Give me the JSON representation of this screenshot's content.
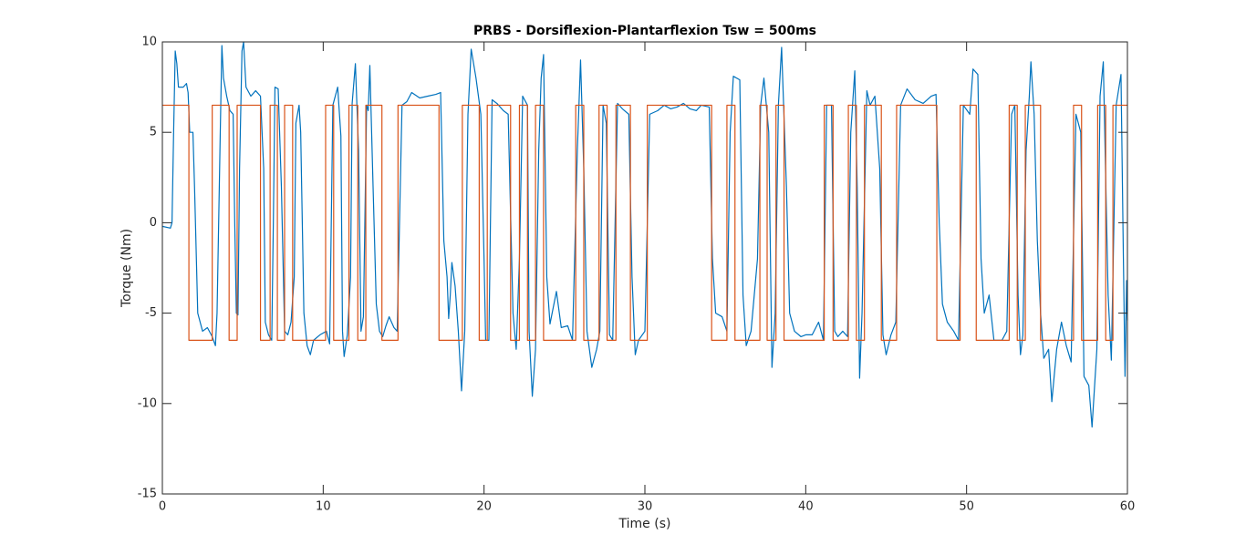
{
  "chart_data": {
    "type": "line",
    "title": "PRBS - Dorsiflexion-Plantarflexion Tsw = 500ms",
    "x_label": "Time (s)",
    "y_label": "Torque (Nm)",
    "xlim": [
      0,
      60
    ],
    "xticks": [
      0,
      10,
      20,
      30,
      40,
      50,
      60
    ],
    "ylim": [
      -15,
      10
    ],
    "yticks": [
      -15,
      -10,
      -5,
      0,
      5,
      10
    ],
    "grid": false,
    "series": [
      {
        "color": "#0072bd",
        "x": [
          0,
          0.5,
          0.6,
          0.7,
          0.8,
          0.9,
          1.0,
          1.3,
          1.5,
          1.6,
          1.7,
          1.9,
          2.0,
          2.2,
          2.5,
          2.8,
          3.1,
          3.3,
          3.4,
          3.6,
          3.7,
          3.8,
          4.0,
          4.2,
          4.4,
          4.5,
          4.6,
          4.7,
          4.8,
          4.95,
          5.05,
          5.2,
          5.5,
          5.8,
          6.1,
          6.3,
          6.4,
          6.6,
          6.8,
          6.9,
          7.0,
          7.2,
          7.4,
          7.6,
          7.8,
          8.0,
          8.2,
          8.3,
          8.5,
          8.6,
          8.8,
          9.0,
          9.2,
          9.4,
          9.8,
          10.2,
          10.4,
          10.6,
          10.9,
          11.1,
          11.2,
          11.3,
          11.5,
          11.7,
          11.8,
          12.0,
          12.2,
          12.35,
          12.5,
          12.7,
          12.8,
          12.9,
          13.1,
          13.3,
          13.5,
          13.7,
          13.9,
          14.1,
          14.4,
          14.6,
          14.9,
          15.2,
          15.5,
          16.0,
          16.5,
          17.0,
          17.3,
          17.5,
          17.7,
          17.8,
          17.9,
          18.0,
          18.2,
          18.4,
          18.6,
          18.8,
          19.0,
          19.2,
          19.5,
          19.8,
          20.0,
          20.1,
          20.3,
          20.5,
          20.8,
          21.2,
          21.5,
          21.8,
          22.0,
          22.2,
          22.4,
          22.7,
          22.8,
          23.0,
          23.2,
          23.4,
          23.55,
          23.7,
          23.9,
          24.1,
          24.5,
          24.8,
          25.2,
          25.5,
          25.8,
          26.0,
          26.2,
          26.4,
          26.7,
          27.0,
          27.2,
          27.4,
          27.6,
          27.8,
          28.0,
          28.3,
          28.6,
          29.0,
          29.2,
          29.4,
          29.6,
          30.0,
          30.3,
          30.8,
          31.2,
          31.6,
          32.0,
          32.4,
          32.8,
          33.2,
          33.5,
          34.0,
          34.2,
          34.4,
          34.8,
          35.1,
          35.3,
          35.5,
          35.9,
          36.1,
          36.3,
          36.6,
          37.0,
          37.2,
          37.4,
          37.7,
          37.9,
          38.1,
          38.3,
          38.5,
          38.8,
          39.0,
          39.3,
          39.7,
          40.0,
          40.4,
          40.8,
          41.1,
          41.3,
          41.6,
          41.8,
          42.0,
          42.3,
          42.6,
          42.8,
          43.05,
          43.2,
          43.35,
          43.5,
          43.8,
          44.0,
          44.3,
          44.6,
          44.8,
          45.0,
          45.3,
          45.6,
          45.9,
          46.3,
          46.8,
          47.3,
          47.8,
          48.1,
          48.3,
          48.5,
          48.8,
          49.2,
          49.5,
          49.8,
          50.2,
          50.4,
          50.7,
          50.9,
          51.1,
          51.4,
          51.7,
          52.2,
          52.5,
          52.8,
          53.0,
          53.2,
          53.35,
          53.5,
          53.7,
          53.9,
          54.0,
          54.2,
          54.4,
          54.6,
          54.8,
          55.1,
          55.3,
          55.6,
          55.9,
          56.2,
          56.5,
          56.8,
          57.1,
          57.3,
          57.6,
          57.8,
          58.1,
          58.3,
          58.5,
          58.8,
          59.0,
          59.3,
          59.6,
          59.75,
          59.85,
          59.95,
          60
        ],
        "values": [
          -0.2,
          -0.3,
          0,
          5,
          9.5,
          8.8,
          7.5,
          7.5,
          7.7,
          7.2,
          5.0,
          5.0,
          2,
          -5,
          -6,
          -5.8,
          -6.3,
          -6.8,
          -5,
          5,
          9.8,
          8,
          7,
          6.2,
          6,
          0,
          -5,
          -5.1,
          3,
          9.5,
          10,
          7.5,
          7,
          7.3,
          7.0,
          3,
          -5.5,
          -6.2,
          -6.5,
          0,
          7.5,
          7.4,
          2,
          -6,
          -6.2,
          -5.5,
          -3,
          5.5,
          6.5,
          5,
          -5,
          -6.8,
          -7.3,
          -6.5,
          -6.2,
          -6.0,
          -6.7,
          6.5,
          7.5,
          4.8,
          -6,
          -7.4,
          -6.2,
          -3,
          6.6,
          8.8,
          4,
          -6,
          -5.2,
          6.5,
          6.2,
          8.7,
          2,
          -4.5,
          -6,
          -6.3,
          -5.7,
          -5.2,
          -5.8,
          -6.0,
          6.5,
          6.7,
          7.2,
          6.9,
          7.0,
          7.1,
          7.2,
          -1,
          -3,
          -5.3,
          -4,
          -2.2,
          -3.5,
          -6,
          -9.3,
          -6,
          6,
          9.6,
          8,
          6,
          -2,
          -6.5,
          -6.5,
          6.8,
          6.6,
          6.2,
          6,
          -5,
          -7,
          -2,
          7,
          6.5,
          -6,
          -9.6,
          -7,
          4,
          8,
          9.3,
          -3,
          -5.6,
          -3.8,
          -5.8,
          -5.7,
          -6.5,
          4,
          9,
          3,
          -6,
          -8,
          -7,
          -6,
          6.5,
          5.5,
          -6.2,
          -6.5,
          6.6,
          6.3,
          6.0,
          -3,
          -7.3,
          -6.5,
          -6.0,
          6,
          6.2,
          6.5,
          6.3,
          6.4,
          6.6,
          6.3,
          6.2,
          6.5,
          6.4,
          -2,
          -5,
          -5.2,
          -6,
          5,
          8.1,
          7.9,
          -4,
          -6.8,
          -6.0,
          -2,
          6.5,
          8.0,
          5,
          -8,
          -5,
          6.5,
          9.7,
          2,
          -5,
          -6.0,
          -6.3,
          -6.2,
          -6.2,
          -5.5,
          -6.5,
          6.5,
          6.5,
          -6,
          -6.3,
          -6.0,
          -6.3,
          5,
          8.4,
          2,
          -8.6,
          -5,
          7.3,
          6.5,
          7,
          3,
          -6.2,
          -7.3,
          -6.2,
          -5.5,
          6.5,
          7.4,
          6.8,
          6.6,
          7.0,
          7.1,
          0,
          -4.5,
          -5.5,
          -6,
          -6.5,
          6.5,
          6.0,
          8.5,
          8.2,
          -2,
          -5,
          -4,
          -6.5,
          -6.5,
          -6.0,
          6,
          6.5,
          -4,
          -7.3,
          -6.2,
          4,
          7,
          8.9,
          6,
          -1,
          -5,
          -7.5,
          -7.0,
          -9.9,
          -7,
          -5.5,
          -6.8,
          -7.7,
          6,
          5,
          -8.5,
          -9,
          -11.3,
          -7,
          7,
          8.9,
          -4,
          -7.6,
          6.5,
          8.2,
          -2,
          -8.5,
          -3.2,
          -5.4
        ]
      },
      {
        "color": "#d95319",
        "x": [
          0,
          1.65,
          1.65,
          3.1,
          3.1,
          4.15,
          4.15,
          4.65,
          4.65,
          6.1,
          6.1,
          6.7,
          6.7,
          7.15,
          7.15,
          7.6,
          7.6,
          8.1,
          8.1,
          10.15,
          10.15,
          10.65,
          10.65,
          11.6,
          11.6,
          12.15,
          12.15,
          12.65,
          12.65,
          13.65,
          13.65,
          14.65,
          14.65,
          17.2,
          17.2,
          18.65,
          18.65,
          19.7,
          19.7,
          20.2,
          20.2,
          21.65,
          21.65,
          22.2,
          22.2,
          22.7,
          22.7,
          23.2,
          23.2,
          23.7,
          23.7,
          25.7,
          25.7,
          26.2,
          26.2,
          27.15,
          27.15,
          27.65,
          27.65,
          28.2,
          28.2,
          29.1,
          29.1,
          30.15,
          30.15,
          34.15,
          34.15,
          35.1,
          35.1,
          35.6,
          35.6,
          37.15,
          37.15,
          37.6,
          37.6,
          38.15,
          38.15,
          38.65,
          38.65,
          41.15,
          41.15,
          41.7,
          41.7,
          42.65,
          42.65,
          43.15,
          43.15,
          43.65,
          43.65,
          44.7,
          44.7,
          45.65,
          45.65,
          48.15,
          48.15,
          49.6,
          49.6,
          50.6,
          50.6,
          52.65,
          52.65,
          53.15,
          53.15,
          53.65,
          53.65,
          54.6,
          54.6,
          56.65,
          56.65,
          57.15,
          57.15,
          58.15,
          58.15,
          58.65,
          58.65,
          59.1,
          59.1,
          60
        ],
        "values": [
          6.5,
          6.5,
          -6.5,
          -6.5,
          6.5,
          6.5,
          -6.5,
          -6.5,
          6.5,
          6.5,
          -6.5,
          -6.5,
          6.5,
          6.5,
          -6.5,
          -6.5,
          6.5,
          6.5,
          -6.5,
          -6.5,
          6.5,
          6.5,
          -6.5,
          -6.5,
          6.5,
          6.5,
          -6.5,
          -6.5,
          6.5,
          6.5,
          -6.5,
          -6.5,
          6.5,
          6.5,
          -6.5,
          -6.5,
          6.5,
          6.5,
          -6.5,
          -6.5,
          6.5,
          6.5,
          -6.5,
          -6.5,
          6.5,
          6.5,
          -6.5,
          -6.5,
          6.5,
          6.5,
          -6.5,
          -6.5,
          6.5,
          6.5,
          -6.5,
          -6.5,
          6.5,
          6.5,
          -6.5,
          -6.5,
          6.5,
          6.5,
          -6.5,
          -6.5,
          6.5,
          6.5,
          -6.5,
          -6.5,
          6.5,
          6.5,
          -6.5,
          -6.5,
          6.5,
          6.5,
          -6.5,
          -6.5,
          6.5,
          6.5,
          -6.5,
          -6.5,
          6.5,
          6.5,
          -6.5,
          -6.5,
          6.5,
          6.5,
          -6.5,
          -6.5,
          6.5,
          6.5,
          -6.5,
          -6.5,
          6.5,
          6.5,
          -6.5,
          -6.5,
          6.5,
          6.5,
          -6.5,
          -6.5,
          6.5,
          6.5,
          -6.5,
          -6.5,
          6.5,
          6.5,
          -6.5,
          -6.5,
          6.5,
          6.5,
          -6.5,
          -6.5,
          6.5,
          6.5,
          -6.5,
          -6.5,
          6.5,
          6.5
        ]
      }
    ]
  }
}
